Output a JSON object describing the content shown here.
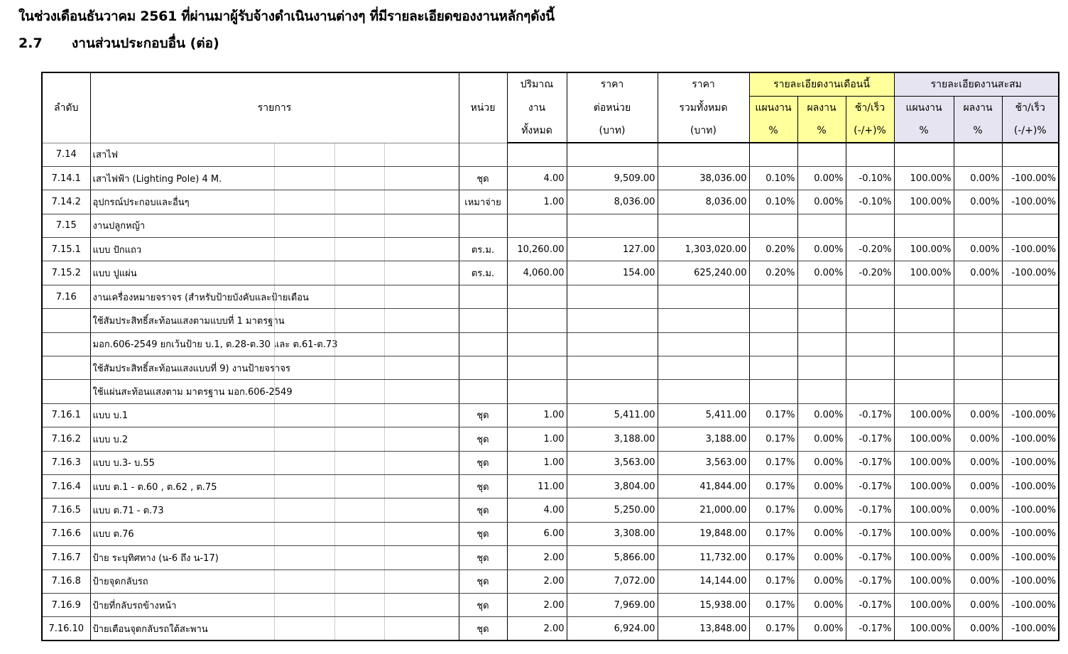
{
  "heading": "ในช่วงเดือนธันวาคม  2561 ที่ผ่านมาผู้รับจ้างดำเนินงานต่างๆ ที่มีรายละเอียดของงานหลักๆดังนี้",
  "section": {
    "number": "2.7",
    "title": "งานส่วนประกอบอื่น (ต่อ)"
  },
  "header": {
    "no": "ลำดับ",
    "item": "รายการ",
    "unit": "หน่วย",
    "qty": [
      "ปริมาณ",
      "งาน",
      "ทั้งหมด"
    ],
    "price": [
      "ราคา",
      "ต่อหน่วย",
      "(บาท)"
    ],
    "total": [
      "ราคา",
      "รวมทั้งหมด",
      "(บาท)"
    ],
    "month": "รายละเอียดงานเดือนนี้",
    "cumulative": "รายละเอียดงานสะสม",
    "plan": "แผนงาน",
    "actual": "ผลงาน",
    "diff": "ช้า/เร็ว",
    "pct": "%",
    "diff_pct": "(-/+)%"
  },
  "colors": {
    "month_bg": "#ffff9c",
    "cumulative_bg": "#e6e4f0"
  },
  "rows": [
    [
      "7.14",
      "เสาไฟ",
      "",
      "",
      "",
      "",
      "",
      "",
      "",
      "",
      "",
      ""
    ],
    [
      "7.14.1",
      " เสาไฟฟ้า (Lighting Pole) 4 M.",
      "ชุด",
      "4.00",
      "9,509.00",
      "38,036.00",
      "0.10%",
      "0.00%",
      "-0.10%",
      "100.00%",
      "0.00%",
      "-100.00%"
    ],
    [
      "7.14.2",
      "อุปกรณ์ประกอบและอื่นๆ",
      "เหมาจ่าย",
      "1.00",
      "8,036.00",
      "8,036.00",
      "0.10%",
      "0.00%",
      "-0.10%",
      "100.00%",
      "0.00%",
      "-100.00%"
    ],
    [
      "7.15",
      "งานปลูกหญ้า",
      "",
      "",
      "",
      "",
      "",
      "",
      "",
      "",
      "",
      ""
    ],
    [
      "7.15.1",
      "แบบ ปักแถว",
      "ตร.ม.",
      "10,260.00",
      "127.00",
      "1,303,020.00",
      "0.20%",
      "0.00%",
      "-0.20%",
      "100.00%",
      "0.00%",
      "-100.00%"
    ],
    [
      "7.15.2",
      "แบบ ปูแผ่น",
      "ตร.ม.",
      "4,060.00",
      "154.00",
      "625,240.00",
      "0.20%",
      "0.00%",
      "-0.20%",
      "100.00%",
      "0.00%",
      "-100.00%"
    ],
    [
      "7.16",
      "งานเครื่องหมายจราจร (สำหรับป้ายบังคับและป้ายเตือน",
      "",
      "",
      "",
      "",
      "",
      "",
      "",
      "",
      "",
      ""
    ],
    [
      "",
      "ใช้สัมประสิทธิ์สะท้อนแสงตามแบบที่ 1 มาตรฐาน",
      "",
      "",
      "",
      "",
      "",
      "",
      "",
      "",
      "",
      ""
    ],
    [
      "",
      "มอก.606-2549 ยกเว้นป้าย บ.1, ต.28-ต.30 และ ต.61-ต.73",
      "",
      "",
      "",
      "",
      "",
      "",
      "",
      "",
      "",
      ""
    ],
    [
      "",
      "ใช้สัมประสิทธิ์สะท้อนแสงแบบที่ 9) งานป้ายจราจร",
      "",
      "",
      "",
      "",
      "",
      "",
      "",
      "",
      "",
      ""
    ],
    [
      "",
      "ใช้แผ่นสะท้อนแสงตาม มาตรฐาน มอก.606-2549",
      "",
      "",
      "",
      "",
      "",
      "",
      "",
      "",
      "",
      ""
    ],
    [
      "7.16.1",
      "แบบ บ.1",
      "ชุด",
      "1.00",
      "5,411.00",
      "5,411.00",
      "0.17%",
      "0.00%",
      "-0.17%",
      "100.00%",
      "0.00%",
      "-100.00%"
    ],
    [
      "7.16.2",
      "แบบ บ.2",
      "ชุด",
      "1.00",
      "3,188.00",
      "3,188.00",
      "0.17%",
      "0.00%",
      "-0.17%",
      "100.00%",
      "0.00%",
      "-100.00%"
    ],
    [
      "7.16.3",
      "แบบ บ.3- บ.55",
      "ชุด",
      "1.00",
      "3,563.00",
      "3,563.00",
      "0.17%",
      "0.00%",
      "-0.17%",
      "100.00%",
      "0.00%",
      "-100.00%"
    ],
    [
      "7.16.4",
      "แบบ ต.1 - ต.60 , ต.62 , ต.75",
      "ชุด",
      "11.00",
      "3,804.00",
      "41,844.00",
      "0.17%",
      "0.00%",
      "-0.17%",
      "100.00%",
      "0.00%",
      "-100.00%"
    ],
    [
      "7.16.5",
      "แบบ ต.71 - ต.73",
      "ชุด",
      "4.00",
      "5,250.00",
      "21,000.00",
      "0.17%",
      "0.00%",
      "-0.17%",
      "100.00%",
      "0.00%",
      "-100.00%"
    ],
    [
      "7.16.6",
      "แบบ ต.76",
      "ชุด",
      "6.00",
      "3,308.00",
      "19,848.00",
      "0.17%",
      "0.00%",
      "-0.17%",
      "100.00%",
      "0.00%",
      "-100.00%"
    ],
    [
      "7.16.7",
      "ป้าย ระบุทิศทาง (น-6 ถึง น-17)",
      "ชุด",
      "2.00",
      "5,866.00",
      "11,732.00",
      "0.17%",
      "0.00%",
      "-0.17%",
      "100.00%",
      "0.00%",
      "-100.00%"
    ],
    [
      "7.16.8",
      "ป้ายจุดกลับรถ",
      "ชุด",
      "2.00",
      "7,072.00",
      "14,144.00",
      "0.17%",
      "0.00%",
      "-0.17%",
      "100.00%",
      "0.00%",
      "-100.00%"
    ],
    [
      "7.16.9",
      "ป้ายที่กลับรถข้างหน้า",
      "ชุด",
      "2.00",
      "7,969.00",
      "15,938.00",
      "0.17%",
      "0.00%",
      "-0.17%",
      "100.00%",
      "0.00%",
      "-100.00%"
    ],
    [
      "7.16.10",
      "ป้ายเตือนจุดกลับรถใต้สะพาน",
      "ชุด",
      "2.00",
      "6,924.00",
      "13,848.00",
      "0.17%",
      "0.00%",
      "-0.17%",
      "100.00%",
      "0.00%",
      "-100.00%"
    ]
  ]
}
